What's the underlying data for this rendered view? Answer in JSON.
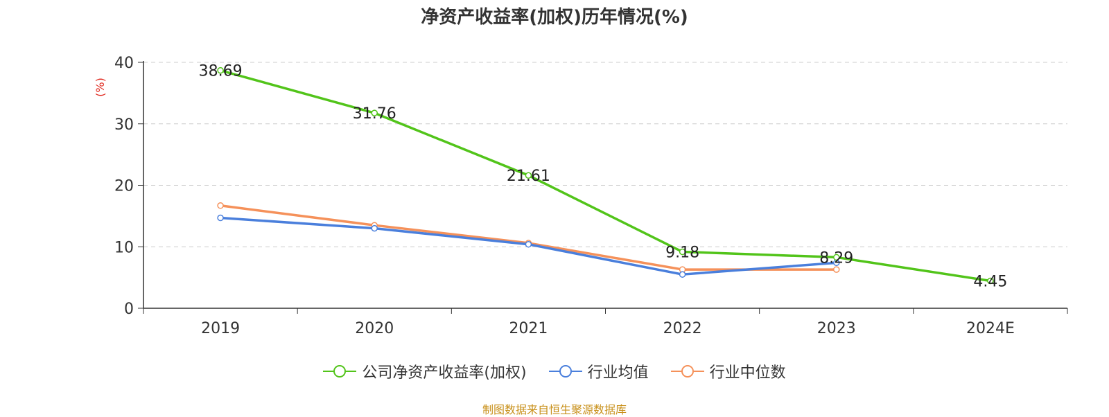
{
  "chart_data": {
    "type": "line",
    "title": "净资产收益率(加权)历年情况(%)",
    "ylabel": "(%)",
    "xlabel": "",
    "categories": [
      "2019",
      "2020",
      "2021",
      "2022",
      "2023",
      "2024E"
    ],
    "ylim": [
      0,
      40
    ],
    "yticks": [
      0,
      10,
      20,
      30,
      40
    ],
    "grid": true,
    "legend_position": "bottom",
    "series": [
      {
        "name": "公司净资产收益率(加权)",
        "color": "#52c41a",
        "values": [
          38.69,
          31.76,
          21.61,
          9.18,
          8.29,
          4.45
        ],
        "labels": [
          "38.69",
          "31.76",
          "21.61",
          "9.18",
          "8.29",
          "4.45"
        ]
      },
      {
        "name": "行业均值",
        "color": "#4a7fdc",
        "values": [
          14.7,
          13.0,
          10.4,
          5.5,
          7.4,
          null
        ]
      },
      {
        "name": "行业中位数",
        "color": "#f5915a",
        "values": [
          16.7,
          13.5,
          10.6,
          6.3,
          6.3,
          null
        ]
      }
    ]
  },
  "source": "制图数据来自恒生聚源数据库"
}
